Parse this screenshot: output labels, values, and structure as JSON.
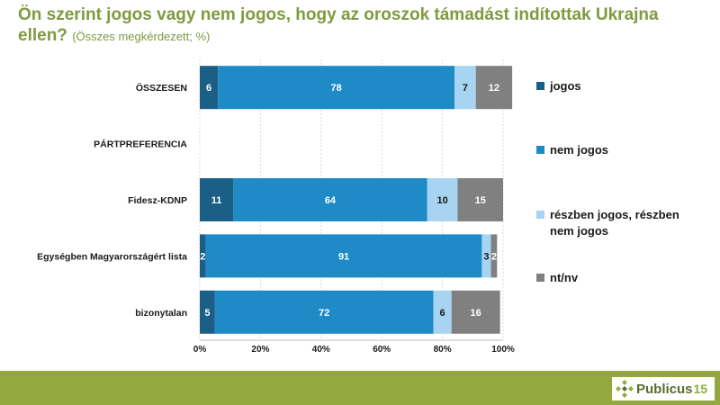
{
  "title": {
    "main": "Ön szerint jogos vagy nem jogos, hogy az oroszok támadást indítottak Ukrajna ellen?",
    "sub": "(Összes megkérdezett; %)"
  },
  "colors": {
    "title": "#7f9a3f",
    "footer": "#94a83f"
  },
  "chart_data": {
    "type": "bar",
    "orientation": "horizontal",
    "stacked": true,
    "categories": [
      "ÖSSZESEN",
      "PÁRTPREFERENCIA",
      "Fidesz-KDNP",
      "Egységben Magyarországért lista",
      "bizonytalan"
    ],
    "series": [
      {
        "name": "jogos",
        "color": "#1b5f86",
        "label_color": "#ffffff",
        "values": [
          6,
          null,
          11,
          2,
          5
        ]
      },
      {
        "name": "nem jogos",
        "color": "#1e8bc6",
        "label_color": "#ffffff",
        "values": [
          78,
          null,
          64,
          91,
          72
        ]
      },
      {
        "name": "részben jogos, részben nem jogos",
        "color": "#a7d4f0",
        "label_color": "#1a1a1a",
        "values": [
          7,
          null,
          10,
          3,
          6
        ]
      },
      {
        "name": "nt/nv",
        "color": "#808080",
        "label_color": "#ffffff",
        "values": [
          12,
          null,
          15,
          2,
          16
        ]
      }
    ],
    "xlim": [
      0,
      100
    ],
    "xticks": [
      "0%",
      "20%",
      "40%",
      "60%",
      "80%",
      "100%"
    ],
    "grid": true,
    "legend_position": "right"
  },
  "logo": {
    "text": "Publicus",
    "number": "15"
  }
}
